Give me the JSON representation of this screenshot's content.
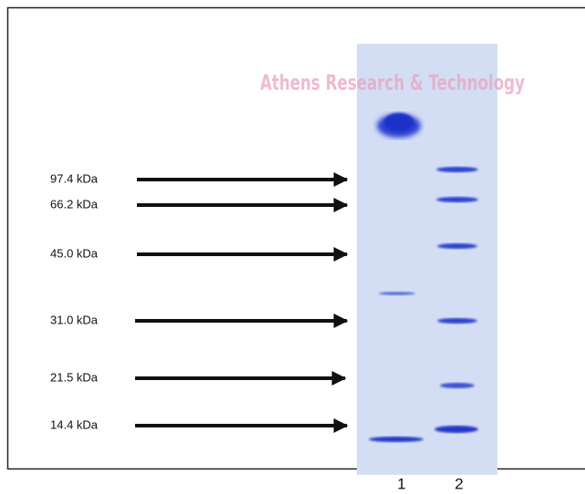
{
  "watermark": "Athens Research & Technology",
  "markers": [
    "97.4 kDa",
    "66.2 kDa",
    "45.0 kDa",
    "31.0 kDa",
    "21.5 kDa",
    "14.4 kDa"
  ],
  "lanes": [
    "1",
    "2"
  ]
}
